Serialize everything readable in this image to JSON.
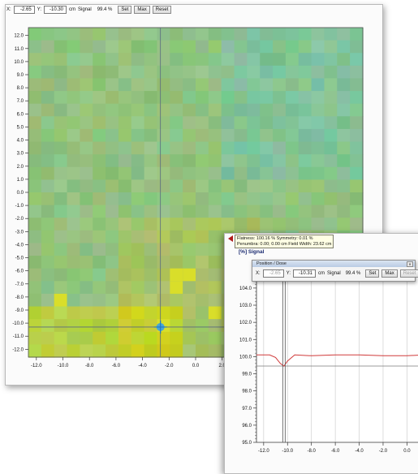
{
  "map_window": {
    "toolbar": {
      "x_label": "X:",
      "x_value": "-2.65",
      "y_label": "Y:",
      "y_value": "-10.30",
      "unit": "cm",
      "signal_label": "Signal",
      "signal_value": "99.4 %",
      "set_label": "Set",
      "max_label": "Max",
      "reset_label": "Reset"
    },
    "y_ticks": [
      "12.0",
      "11.0",
      "10.0",
      "9.0",
      "8.0",
      "7.0",
      "6.0",
      "5.0",
      "4.0",
      "3.0",
      "2.0",
      "1.0",
      "0.0",
      "-1.0",
      "-2.0",
      "-3.0",
      "-4.0",
      "-5.0",
      "-6.0",
      "-7.0",
      "-8.0",
      "-9.0",
      "-10.0",
      "-11.0",
      "-12.0"
    ],
    "x_ticks": [
      "-12.0",
      "-10.0",
      "-8.0",
      "-6.0",
      "-4.0",
      "-2.0",
      "0.0",
      "2.0"
    ],
    "cursor": {
      "x_cm": -2.65,
      "y_cm": -10.3
    }
  },
  "profile_window": {
    "info": {
      "line1": "Flatness: 100.16 %  Symmetry: 0.01 %",
      "line2": "Penumbra: 0.00; 0.00 cm  Field Width: 23.62 cm"
    },
    "signal_title": "[%] Signal",
    "subwindow_title": "Position / Dose",
    "toolbar": {
      "x_label": "X:",
      "x_value": "-2.65",
      "y_label": "Y:",
      "y_value": "-10.31",
      "unit": "cm",
      "signal_label": "Signal",
      "signal_value": "99.4 %",
      "set_label": "Set",
      "max_label": "Max",
      "reset_label": "Reset"
    },
    "y_ticks": [
      "104.0",
      "103.0",
      "102.0",
      "101.0",
      "100.0",
      "99.0",
      "98.0",
      "97.0",
      "96.0",
      "95.0"
    ],
    "x_ticks": [
      "-12.0",
      "-10.0",
      "-8.0",
      "-6.0",
      "-4.0",
      "-2.0",
      "0.0"
    ],
    "cursor_x_cm": -10.3,
    "line_color": "#d03a3a"
  },
  "chart_data": {
    "type": "line",
    "title": "",
    "ylabel": "[%] Signal",
    "xlim": [
      -12.6,
      1.4
    ],
    "ylim": [
      95.0,
      104.8
    ],
    "series": [
      {
        "x": [
          -12.6,
          -11.5,
          -11.0,
          -10.6,
          -10.3,
          -10.0,
          -9.4,
          -8.0,
          -6.0,
          -4.0,
          -2.0,
          0.0,
          1.4
        ],
        "y": [
          100.1,
          100.1,
          99.95,
          99.6,
          99.45,
          99.75,
          100.1,
          100.05,
          100.1,
          100.1,
          100.05,
          100.05,
          100.1
        ]
      }
    ]
  }
}
